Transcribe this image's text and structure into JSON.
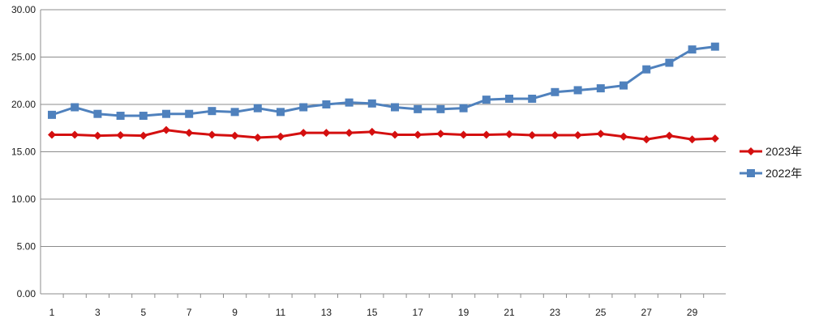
{
  "chart_data": {
    "type": "line",
    "title": "",
    "xlabel": "",
    "ylabel": "",
    "x": [
      1,
      2,
      3,
      4,
      5,
      6,
      7,
      8,
      9,
      10,
      11,
      12,
      13,
      14,
      15,
      16,
      17,
      18,
      19,
      20,
      21,
      22,
      23,
      24,
      25,
      26,
      27,
      28,
      29,
      30
    ],
    "x_tick_labels": [
      "1",
      "3",
      "5",
      "7",
      "9",
      "11",
      "13",
      "15",
      "17",
      "19",
      "21",
      "23",
      "25",
      "27",
      "29"
    ],
    "x_tick_values": [
      1,
      3,
      5,
      7,
      9,
      11,
      13,
      15,
      17,
      19,
      21,
      23,
      25,
      27,
      29
    ],
    "y_tick_labels": [
      "0.00",
      "5.00",
      "10.00",
      "15.00",
      "20.00",
      "25.00",
      "30.00"
    ],
    "ylim": [
      0,
      30
    ],
    "xlim": [
      1,
      30
    ],
    "grid": "horizontal",
    "legend_position": "right",
    "series": [
      {
        "name": "2023年",
        "color": "#d40f0f",
        "marker": "diamond",
        "values": [
          16.8,
          16.8,
          16.7,
          16.75,
          16.7,
          17.3,
          17.0,
          16.8,
          16.7,
          16.5,
          16.6,
          17.0,
          17.0,
          17.0,
          17.1,
          16.8,
          16.8,
          16.9,
          16.8,
          16.8,
          16.85,
          16.75,
          16.75,
          16.75,
          16.9,
          16.6,
          16.3,
          16.7,
          16.3,
          16.4
        ]
      },
      {
        "name": "2022年",
        "color": "#4f81bd",
        "marker": "square",
        "values": [
          18.9,
          19.7,
          19.0,
          18.8,
          18.8,
          19.0,
          19.0,
          19.3,
          19.2,
          19.6,
          19.2,
          19.7,
          20.0,
          20.2,
          20.1,
          19.7,
          19.5,
          19.5,
          19.6,
          20.5,
          20.6,
          20.6,
          21.3,
          21.5,
          21.7,
          22.0,
          23.7,
          24.4,
          25.8,
          26.1
        ]
      }
    ]
  }
}
